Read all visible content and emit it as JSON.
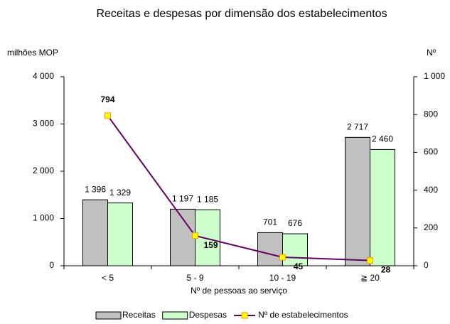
{
  "chart_data": {
    "type": "bar_line",
    "title": "Receitas e despesas por dimensão dos estabelecimentos",
    "y_label": "milhões MOP",
    "y2_label": "Nº",
    "x_label": "Nº de pessoas ao serviço",
    "categories": [
      "< 5",
      "5 - 9",
      "10 - 19",
      "≧ 20"
    ],
    "series": [
      {
        "name": "Receitas",
        "color": "#c0c0c0",
        "values": [
          1396,
          1197,
          701,
          2717
        ],
        "value_labels": [
          "1 396",
          "1 197",
          "701",
          "2 717"
        ]
      },
      {
        "name": "Despesas",
        "color": "#ccffcc",
        "values": [
          1329,
          1185,
          676,
          2460
        ],
        "value_labels": [
          "1 329",
          "1 185",
          "676",
          "2 460"
        ]
      },
      {
        "name": "Nº de estabelecimentos",
        "type": "line",
        "axis": "y2",
        "color": "#660066",
        "marker_color": "#ffff00",
        "values": [
          794,
          159,
          45,
          28
        ]
      }
    ],
    "ylim": [
      0,
      4000
    ],
    "yticks": [
      0,
      {
        "value": 1000,
        "label": "1 000"
      },
      {
        "value": 2000,
        "label": "2 000"
      },
      {
        "value": 3000,
        "label": "3 000"
      },
      {
        "value": 4000,
        "label": "4 000"
      }
    ],
    "y2lim": [
      0,
      1000
    ],
    "y2ticks": [
      0,
      200,
      400,
      600,
      800,
      {
        "value": 1000,
        "label": "1 000"
      }
    ]
  }
}
